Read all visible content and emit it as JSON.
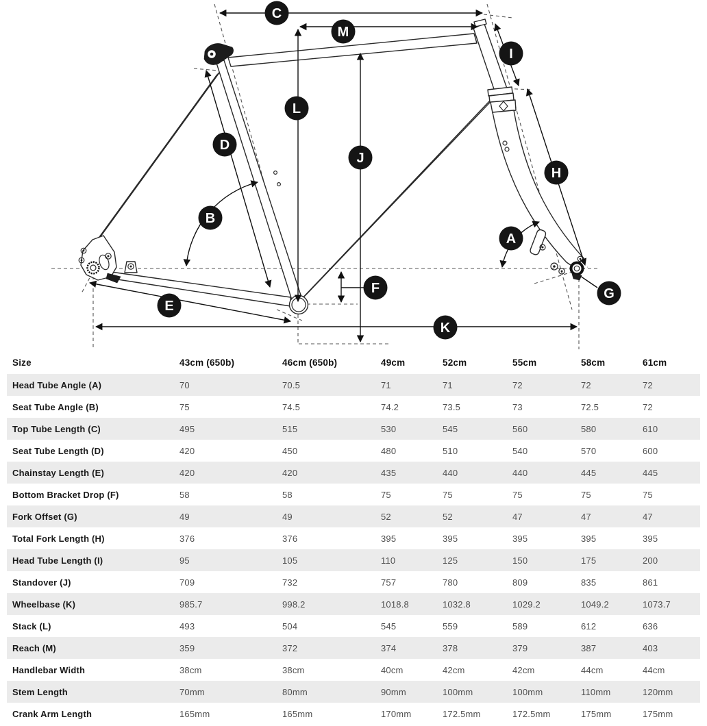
{
  "diagram": {
    "markers": [
      {
        "letter": "A"
      },
      {
        "letter": "B"
      },
      {
        "letter": "C"
      },
      {
        "letter": "D"
      },
      {
        "letter": "E"
      },
      {
        "letter": "F"
      },
      {
        "letter": "G"
      },
      {
        "letter": "H"
      },
      {
        "letter": "I"
      },
      {
        "letter": "J"
      },
      {
        "letter": "K"
      },
      {
        "letter": "L"
      },
      {
        "letter": "M"
      }
    ]
  },
  "table": {
    "columns": [
      "Size",
      "43cm (650b)",
      "46cm (650b)",
      "49cm",
      "52cm",
      "55cm",
      "58cm",
      "61cm"
    ],
    "rows": [
      {
        "label": "Head Tube Angle (A)",
        "values": [
          "70",
          "70.5",
          "71",
          "71",
          "72",
          "72",
          "72"
        ]
      },
      {
        "label": "Seat Tube Angle (B)",
        "values": [
          "75",
          "74.5",
          "74.2",
          "73.5",
          "73",
          "72.5",
          "72"
        ]
      },
      {
        "label": "Top Tube Length (C)",
        "values": [
          "495",
          "515",
          "530",
          "545",
          "560",
          "580",
          "610"
        ]
      },
      {
        "label": "Seat Tube Length (D)",
        "values": [
          "420",
          "450",
          "480",
          "510",
          "540",
          "570",
          "600"
        ]
      },
      {
        "label": "Chainstay Length (E)",
        "values": [
          "420",
          "420",
          "435",
          "440",
          "440",
          "445",
          "445"
        ]
      },
      {
        "label": "Bottom Bracket Drop (F)",
        "values": [
          "58",
          "58",
          "75",
          "75",
          "75",
          "75",
          "75"
        ]
      },
      {
        "label": "Fork Offset (G)",
        "values": [
          "49",
          "49",
          "52",
          "52",
          "47",
          "47",
          "47"
        ]
      },
      {
        "label": "Total Fork Length (H)",
        "values": [
          "376",
          "376",
          "395",
          "395",
          "395",
          "395",
          "395"
        ]
      },
      {
        "label": "Head Tube Length (I)",
        "values": [
          "95",
          "105",
          "110",
          "125",
          "150",
          "175",
          "200"
        ]
      },
      {
        "label": "Standover (J)",
        "values": [
          "709",
          "732",
          "757",
          "780",
          "809",
          "835",
          "861"
        ]
      },
      {
        "label": "Wheelbase (K)",
        "values": [
          "985.7",
          "998.2",
          "1018.8",
          "1032.8",
          "1029.2",
          "1049.2",
          "1073.7"
        ]
      },
      {
        "label": "Stack (L)",
        "values": [
          "493",
          "504",
          "545",
          "559",
          "589",
          "612",
          "636"
        ]
      },
      {
        "label": "Reach (M)",
        "values": [
          "359",
          "372",
          "374",
          "378",
          "379",
          "387",
          "403"
        ]
      },
      {
        "label": "Handlebar Width",
        "values": [
          "38cm",
          "38cm",
          "40cm",
          "42cm",
          "42cm",
          "44cm",
          "44cm"
        ]
      },
      {
        "label": "Stem Length",
        "values": [
          "70mm",
          "80mm",
          "90mm",
          "100mm",
          "100mm",
          "110mm",
          "120mm"
        ]
      },
      {
        "label": "Crank Arm Length",
        "values": [
          "165mm",
          "165mm",
          "170mm",
          "172.5mm",
          "172.5mm",
          "175mm",
          "175mm"
        ]
      }
    ]
  },
  "colors": {
    "row_stripe": "#ebebeb",
    "label_text": "#1a1a1a",
    "value_text": "#4f4f4f",
    "marker_bg": "#151515",
    "marker_text": "#ffffff",
    "line": "#111111"
  }
}
